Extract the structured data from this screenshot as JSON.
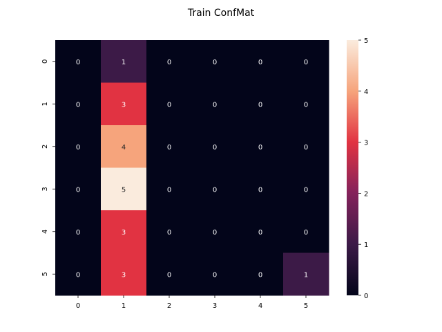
{
  "chart_data": {
    "type": "heatmap",
    "title": "Train ConfMat",
    "xlabel": "",
    "ylabel": "",
    "x_categories": [
      "0",
      "1",
      "2",
      "3",
      "4",
      "5"
    ],
    "y_categories": [
      "0",
      "1",
      "2",
      "3",
      "4",
      "5"
    ],
    "values": [
      [
        0,
        1,
        0,
        0,
        0,
        0
      ],
      [
        0,
        3,
        0,
        0,
        0,
        0
      ],
      [
        0,
        4,
        0,
        0,
        0,
        0
      ],
      [
        0,
        5,
        0,
        0,
        0,
        0
      ],
      [
        0,
        3,
        0,
        0,
        0,
        0
      ],
      [
        0,
        3,
        0,
        0,
        0,
        1
      ]
    ],
    "value_range": [
      0,
      5
    ],
    "colorbar": {
      "ticks": [
        "0",
        "1",
        "2",
        "3",
        "4",
        "5"
      ],
      "placement": "right"
    },
    "colormap": "rocket",
    "grid": false
  }
}
